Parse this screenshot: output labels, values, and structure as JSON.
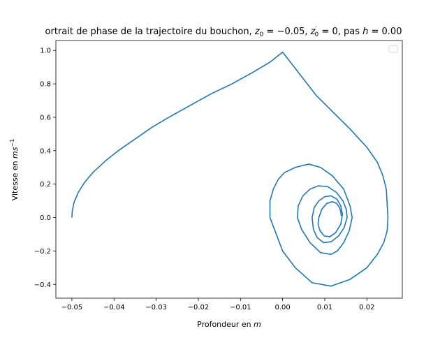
{
  "chart_data": {
    "type": "line",
    "title_parts": [
      "ortrait de phase de la trajectoire du bouchon, ",
      "z",
      "0",
      " = −0.05, ",
      "z",
      "′",
      "0",
      " = 0, pas ",
      "h",
      " = 0.00"
    ],
    "xlabel_text": "Profondeur en ",
    "xlabel_unit": "m",
    "ylabel_text": "Vitesse en ",
    "ylabel_unit": "ms",
    "ylabel_exp": "−1",
    "xlim": [
      -0.0538,
      0.0284
    ],
    "ylim": [
      -0.4825,
      1.0594
    ],
    "x_ticks": [
      -0.05,
      -0.04,
      -0.03,
      -0.02,
      -0.01,
      0.0,
      0.01,
      0.02
    ],
    "x_tick_labels": [
      "−0.05",
      "−0.04",
      "−0.03",
      "−0.02",
      "−0.01",
      "0.00",
      "0.01",
      "0.02"
    ],
    "y_ticks": [
      -0.4,
      -0.2,
      0.0,
      0.2,
      0.4,
      0.6,
      0.8,
      1.0
    ],
    "y_tick_labels": [
      "−0.4",
      "−0.2",
      "0.0",
      "0.2",
      "0.4",
      "0.6",
      "0.8",
      "1.0"
    ],
    "grid": false,
    "legend": "upper-right, empty",
    "series": [
      {
        "color": "#1f77b4",
        "x": [
          -0.05,
          -0.0499,
          -0.0495,
          -0.0485,
          -0.047,
          -0.045,
          -0.042,
          -0.039,
          -0.035,
          -0.031,
          -0.027,
          -0.022,
          -0.017,
          -0.012,
          -0.007,
          -0.003,
          0.0,
          0.004,
          0.008,
          0.012,
          0.016,
          0.02,
          0.0225,
          0.0238,
          0.0246,
          0.025,
          0.0248,
          0.024,
          0.0225,
          0.02,
          0.016,
          0.0115,
          0.007,
          0.003,
          0.0,
          -0.0015,
          -0.003,
          -0.003,
          -0.0022,
          -0.001,
          0.0005,
          0.003,
          0.0062,
          0.009,
          0.0118,
          0.0145,
          0.016,
          0.0165,
          0.0158,
          0.0145,
          0.013,
          0.0115,
          0.009,
          0.0065,
          0.0045,
          0.0035,
          0.0037,
          0.0048,
          0.0065,
          0.0085,
          0.0107,
          0.0128,
          0.0143,
          0.0151,
          0.0153,
          0.0146,
          0.0133,
          0.0115,
          0.0097,
          0.0082,
          0.0073,
          0.007,
          0.0075,
          0.0086,
          0.01,
          0.0115,
          0.0129,
          0.0138,
          0.0142,
          0.0138,
          0.0126,
          0.0112,
          0.0099,
          0.0089,
          0.0084,
          0.0086,
          0.0093,
          0.0105,
          0.0118,
          0.0128,
          0.0135,
          0.0138,
          0.0139
        ],
        "y": [
          0.0,
          0.04,
          0.09,
          0.15,
          0.21,
          0.27,
          0.34,
          0.4,
          0.47,
          0.54,
          0.6,
          0.67,
          0.74,
          0.8,
          0.87,
          0.93,
          0.99,
          0.86,
          0.73,
          0.63,
          0.53,
          0.42,
          0.33,
          0.25,
          0.17,
          0.0,
          -0.08,
          -0.15,
          -0.22,
          -0.3,
          -0.37,
          -0.41,
          -0.39,
          -0.3,
          -0.2,
          -0.1,
          0.0,
          0.1,
          0.17,
          0.23,
          0.27,
          0.3,
          0.32,
          0.3,
          0.25,
          0.17,
          0.07,
          0.0,
          -0.08,
          -0.15,
          -0.2,
          -0.22,
          -0.21,
          -0.15,
          -0.07,
          0.0,
          0.07,
          0.13,
          0.17,
          0.19,
          0.185,
          0.15,
          0.1,
          0.05,
          0.0,
          -0.06,
          -0.11,
          -0.145,
          -0.15,
          -0.12,
          -0.07,
          0.0,
          0.06,
          0.1,
          0.125,
          0.13,
          0.11,
          0.07,
          0.02,
          -0.04,
          -0.09,
          -0.115,
          -0.11,
          -0.08,
          -0.04,
          0.0,
          0.05,
          0.085,
          0.095,
          0.085,
          0.06,
          0.035,
          0.01
        ]
      }
    ]
  }
}
